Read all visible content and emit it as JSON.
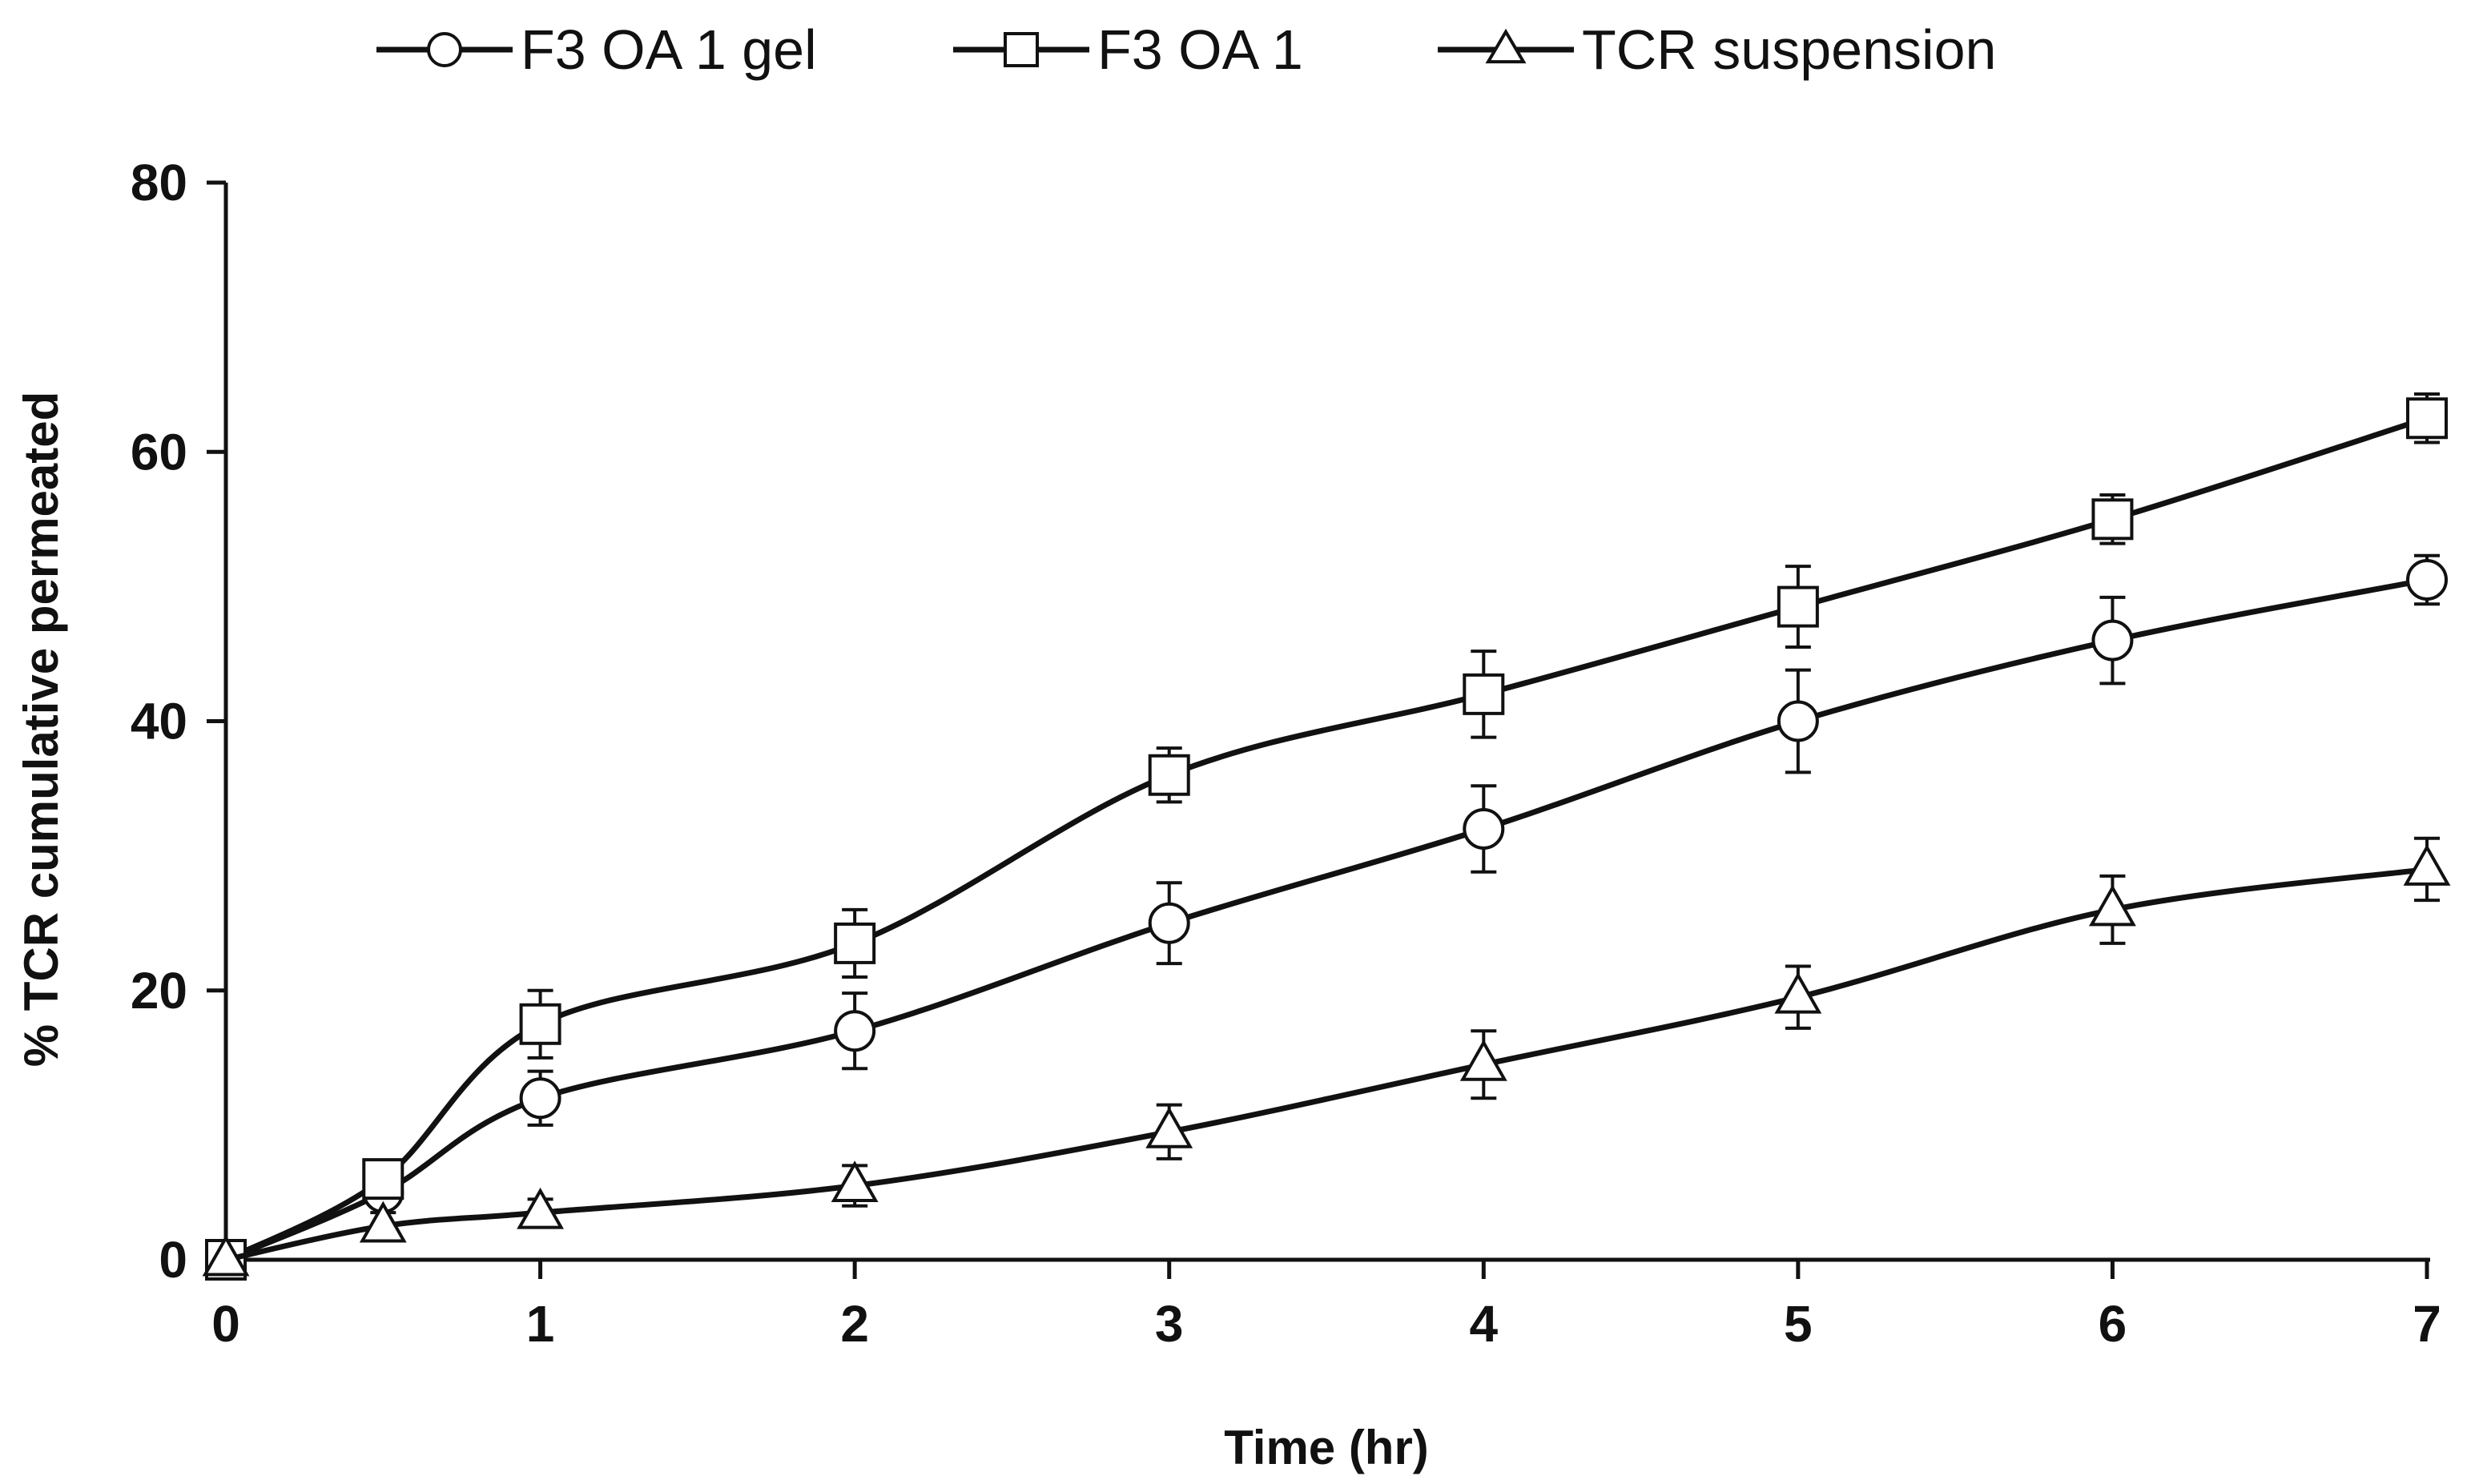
{
  "chart_data": {
    "type": "line",
    "title": "",
    "xlabel": "Time (hr)",
    "ylabel": "% TCR cumulative permeated",
    "xlim": [
      0,
      7
    ],
    "ylim": [
      0,
      80
    ],
    "x_ticks": [
      0,
      1,
      2,
      3,
      4,
      5,
      6,
      7
    ],
    "y_ticks": [
      0,
      20,
      40,
      60,
      80
    ],
    "grid": false,
    "legend_position": "top",
    "x": [
      0,
      0.5,
      1,
      2,
      3,
      4,
      5,
      6,
      7
    ],
    "series": [
      {
        "name": "F3 OA 1 gel",
        "marker": "circle",
        "values": [
          0,
          5,
          12,
          17,
          25,
          32,
          40,
          46,
          50.5
        ],
        "errors": [
          0,
          1,
          2,
          2.8,
          3,
          3.2,
          3.8,
          3.2,
          1.8
        ]
      },
      {
        "name": "F3 OA 1",
        "marker": "square",
        "values": [
          0,
          6,
          17.5,
          23.5,
          36,
          42,
          48.5,
          55,
          62.5
        ],
        "errors": [
          0,
          1,
          2.5,
          2.5,
          2,
          3.2,
          3,
          1.8,
          1.8
        ]
      },
      {
        "name": "TCR suspension",
        "marker": "triangle",
        "values": [
          0,
          2.5,
          3.5,
          5.5,
          9.5,
          14.5,
          19.5,
          26,
          29
        ],
        "errors": [
          0,
          1,
          1,
          1.5,
          2,
          2.5,
          2.3,
          2.5,
          2.3
        ]
      }
    ]
  },
  "colors": {
    "line": "#111111",
    "marker_fill": "#ffffff"
  }
}
